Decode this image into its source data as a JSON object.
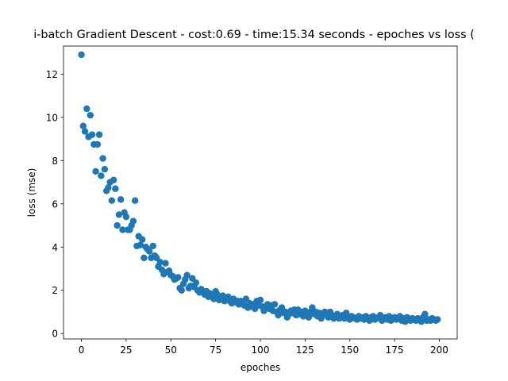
{
  "chart_data": {
    "type": "scatter",
    "title": "i-batch Gradient Descent - cost:0.69 - time:15.34 seconds - epoches vs loss (",
    "xlabel": "epoches",
    "ylabel": "loss (mse)",
    "xlim": [
      -10,
      210
    ],
    "ylim": [
      -0.25,
      13.3
    ],
    "xticks": [
      0,
      25,
      50,
      75,
      100,
      125,
      150,
      175,
      200
    ],
    "yticks": [
      0,
      2,
      4,
      6,
      8,
      10,
      12
    ],
    "grid": false,
    "marker_color": "#1f77b4",
    "series": [
      {
        "points": [
          [
            0,
            12.9
          ],
          [
            1,
            9.6
          ],
          [
            2,
            9.35
          ],
          [
            3,
            10.4
          ],
          [
            4,
            9.1
          ],
          [
            5,
            10.1
          ],
          [
            6,
            9.2
          ],
          [
            7,
            8.75
          ],
          [
            8,
            7.5
          ],
          [
            9,
            8.75
          ],
          [
            10,
            9.2
          ],
          [
            11,
            7.3
          ],
          [
            12,
            8.1
          ],
          [
            13,
            7.6
          ],
          [
            14,
            6.6
          ],
          [
            15,
            6.75
          ],
          [
            16,
            7.0
          ],
          [
            17,
            6.15
          ],
          [
            18,
            7.1
          ],
          [
            19,
            6.7
          ],
          [
            20,
            5.0
          ],
          [
            21,
            5.5
          ],
          [
            22,
            6.2
          ],
          [
            23,
            4.8
          ],
          [
            24,
            5.6
          ],
          [
            25,
            5.4
          ],
          [
            26,
            4.8
          ],
          [
            27,
            4.8
          ],
          [
            28,
            5.0
          ],
          [
            29,
            5.2
          ],
          [
            30,
            6.15
          ],
          [
            31,
            4.05
          ],
          [
            32,
            4.5
          ],
          [
            33,
            4.1
          ],
          [
            34,
            4.35
          ],
          [
            35,
            3.5
          ],
          [
            36,
            4.0
          ],
          [
            37,
            3.9
          ],
          [
            38,
            3.8
          ],
          [
            39,
            3.5
          ],
          [
            40,
            4.05
          ],
          [
            41,
            3.6
          ],
          [
            42,
            3.5
          ],
          [
            43,
            3.1
          ],
          [
            44,
            3.3
          ],
          [
            45,
            2.95
          ],
          [
            46,
            2.75
          ],
          [
            47,
            3.25
          ],
          [
            48,
            2.85
          ],
          [
            49,
            2.9
          ],
          [
            50,
            2.7
          ],
          [
            51,
            2.65
          ],
          [
            52,
            2.5
          ],
          [
            53,
            2.55
          ],
          [
            54,
            2.6
          ],
          [
            55,
            2.1
          ],
          [
            56,
            2.0
          ],
          [
            57,
            2.3
          ],
          [
            58,
            2.5
          ],
          [
            59,
            2.7
          ],
          [
            60,
            2.1
          ],
          [
            61,
            2.2
          ],
          [
            62,
            2.55
          ],
          [
            63,
            2.15
          ],
          [
            64,
            2.35
          ],
          [
            65,
            2.0
          ],
          [
            66,
            1.9
          ],
          [
            67,
            2.05
          ],
          [
            68,
            1.95
          ],
          [
            69,
            1.8
          ],
          [
            70,
            1.95
          ],
          [
            71,
            1.7
          ],
          [
            72,
            1.85
          ],
          [
            73,
            1.75
          ],
          [
            74,
            1.6
          ],
          [
            75,
            1.95
          ],
          [
            76,
            1.8
          ],
          [
            77,
            1.55
          ],
          [
            78,
            1.6
          ],
          [
            79,
            1.75
          ],
          [
            80,
            1.5
          ],
          [
            81,
            1.55
          ],
          [
            82,
            1.7
          ],
          [
            83,
            1.5
          ],
          [
            84,
            1.4
          ],
          [
            85,
            1.6
          ],
          [
            86,
            1.45
          ],
          [
            87,
            1.5
          ],
          [
            88,
            1.35
          ],
          [
            89,
            1.5
          ],
          [
            90,
            1.45
          ],
          [
            91,
            1.3
          ],
          [
            92,
            1.6
          ],
          [
            93,
            1.2
          ],
          [
            94,
            1.4
          ],
          [
            95,
            1.25
          ],
          [
            96,
            1.35
          ],
          [
            97,
            1.15
          ],
          [
            98,
            1.5
          ],
          [
            99,
            1.3
          ],
          [
            100,
            1.55
          ],
          [
            101,
            1.25
          ],
          [
            102,
            1.05
          ],
          [
            103,
            1.2
          ],
          [
            104,
            1.35
          ],
          [
            105,
            1.15
          ],
          [
            106,
            1.3
          ],
          [
            107,
            1.05
          ],
          [
            108,
            1.35
          ],
          [
            109,
            1.0
          ],
          [
            110,
            0.85
          ],
          [
            111,
            1.1
          ],
          [
            112,
            1.2
          ],
          [
            113,
            0.95
          ],
          [
            114,
            1.0
          ],
          [
            115,
            0.75
          ],
          [
            116,
            0.9
          ],
          [
            117,
            1.05
          ],
          [
            118,
            0.95
          ],
          [
            119,
            1.1
          ],
          [
            120,
            0.85
          ],
          [
            121,
            1.1
          ],
          [
            122,
            0.9
          ],
          [
            123,
            1.0
          ],
          [
            124,
            0.8
          ],
          [
            125,
            1.05
          ],
          [
            126,
            0.95
          ],
          [
            127,
            0.75
          ],
          [
            128,
            1.0
          ],
          [
            129,
            1.2
          ],
          [
            130,
            0.9
          ],
          [
            131,
            1.0
          ],
          [
            132,
            0.8
          ],
          [
            133,
            0.95
          ],
          [
            134,
            0.7
          ],
          [
            135,
            0.85
          ],
          [
            136,
            1.0
          ],
          [
            137,
            0.9
          ],
          [
            138,
            0.75
          ],
          [
            139,
            1.0
          ],
          [
            140,
            0.85
          ],
          [
            141,
            0.7
          ],
          [
            142,
            0.75
          ],
          [
            143,
            0.9
          ],
          [
            144,
            0.7
          ],
          [
            145,
            0.8
          ],
          [
            146,
            0.85
          ],
          [
            147,
            0.7
          ],
          [
            148,
            0.95
          ],
          [
            149,
            0.75
          ],
          [
            150,
            0.65
          ],
          [
            151,
            0.8
          ],
          [
            152,
            0.75
          ],
          [
            153,
            0.7
          ],
          [
            154,
            0.65
          ],
          [
            155,
            0.8
          ],
          [
            156,
            0.7
          ],
          [
            157,
            0.75
          ],
          [
            158,
            0.65
          ],
          [
            159,
            0.8
          ],
          [
            160,
            0.7
          ],
          [
            161,
            0.6
          ],
          [
            162,
            0.75
          ],
          [
            163,
            0.8
          ],
          [
            164,
            0.65
          ],
          [
            165,
            0.7
          ],
          [
            166,
            0.75
          ],
          [
            167,
            0.85
          ],
          [
            168,
            0.6
          ],
          [
            169,
            0.7
          ],
          [
            170,
            0.75
          ],
          [
            171,
            0.65
          ],
          [
            172,
            0.8
          ],
          [
            173,
            0.6
          ],
          [
            174,
            0.7
          ],
          [
            175,
            0.75
          ],
          [
            176,
            0.65
          ],
          [
            177,
            0.7
          ],
          [
            178,
            0.8
          ],
          [
            179,
            0.6
          ],
          [
            180,
            0.7
          ],
          [
            181,
            0.55
          ],
          [
            182,
            0.75
          ],
          [
            183,
            0.65
          ],
          [
            184,
            0.6
          ],
          [
            185,
            0.7
          ],
          [
            186,
            0.65
          ],
          [
            187,
            0.6
          ],
          [
            188,
            0.7
          ],
          [
            189,
            0.65
          ],
          [
            190,
            0.55
          ],
          [
            191,
            0.75
          ],
          [
            192,
            0.9
          ],
          [
            193,
            0.6
          ],
          [
            194,
            0.65
          ],
          [
            195,
            0.6
          ],
          [
            196,
            0.7
          ],
          [
            197,
            0.65
          ],
          [
            198,
            0.6
          ],
          [
            199,
            0.65
          ]
        ]
      }
    ]
  }
}
